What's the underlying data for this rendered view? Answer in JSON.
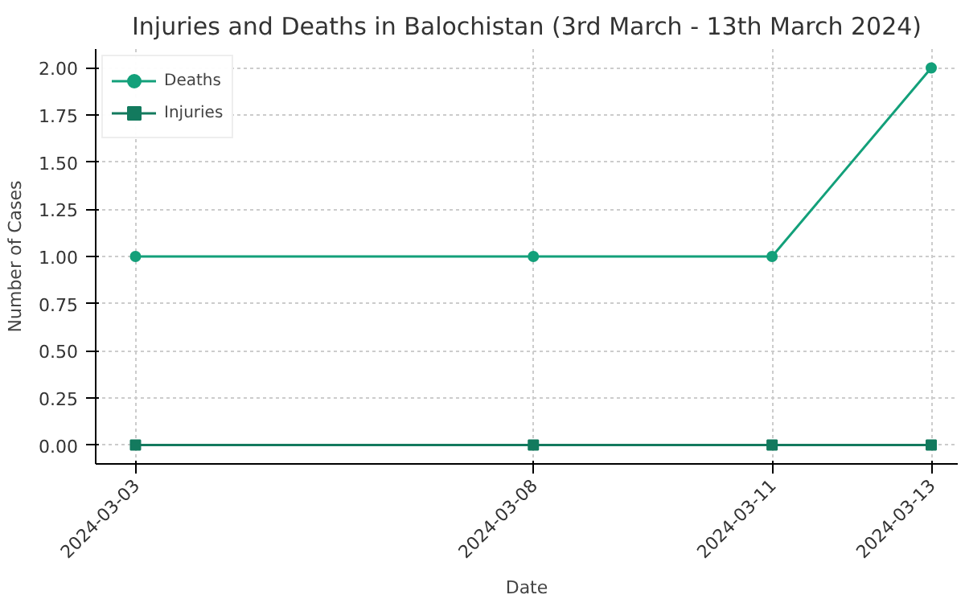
{
  "chart_data": {
    "type": "line",
    "title": "Injuries and Deaths in Balochistan (3rd March - 13th March 2024)",
    "xlabel": "Date",
    "ylabel": "Number of Cases",
    "x": [
      "2024-03-03",
      "2024-03-08",
      "2024-03-11",
      "2024-03-13"
    ],
    "series": [
      {
        "name": "Deaths",
        "color": "#13a07a",
        "values": [
          1,
          1,
          1,
          2
        ],
        "marker": "circle"
      },
      {
        "name": "Injuries",
        "color": "#137a5e",
        "values": [
          0,
          0,
          0,
          0
        ],
        "marker": "square"
      }
    ],
    "xlim": [
      "2024-03-02T12:00",
      "2024-03-13T08:00"
    ],
    "xticks": [
      "2024-03-03",
      "2024-03-08",
      "2024-03-11",
      "2024-03-13"
    ],
    "ylim": [
      -0.1,
      2.1
    ],
    "yticks": [
      {
        "value": 0,
        "label": "0.00"
      },
      {
        "value": 0.25,
        "label": "0.25"
      },
      {
        "value": 0.5,
        "label": "0.50"
      },
      {
        "value": 0.75,
        "label": "0.75"
      },
      {
        "value": 1,
        "label": "1.00"
      },
      {
        "value": 1.25,
        "label": "1.25"
      },
      {
        "value": 1.5,
        "label": "1.50"
      },
      {
        "value": 1.75,
        "label": "1.75"
      },
      {
        "value": 2,
        "label": "2.00"
      }
    ],
    "grid": true,
    "legend": "top left",
    "line_style": "solid"
  }
}
